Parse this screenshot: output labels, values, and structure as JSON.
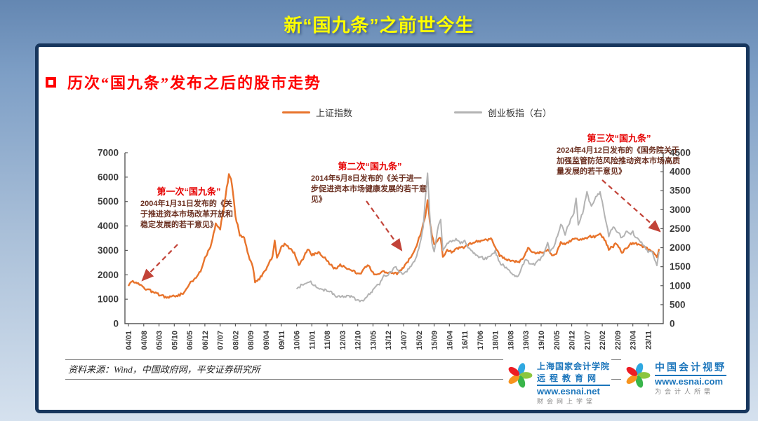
{
  "slide": {
    "title": "新“国九条”之前世今生"
  },
  "bullet": {
    "label": "历次“国九条”发布之后的股市走势"
  },
  "legend": [
    {
      "label": "上证指数",
      "color": "#E8742C"
    },
    {
      "label": "创业板指（右）",
      "color": "#B3B3B3"
    }
  ],
  "annotations": [
    {
      "title": "第一次“国九条”",
      "body": "2004年1月31日发布的《关于推进资本市场改革开放和稳定发展的若干意见》"
    },
    {
      "title": "第二次“国九条”",
      "body": "2014年5月8日发布的《关于进一步促进资本市场健康发展的若干意见》"
    },
    {
      "title": "第三次“国九条”",
      "body": "2024年4月12日发布的《国务院关于加强监管防范风险推动资本市场高质量发展的若干意见》"
    }
  ],
  "source": {
    "text": "资料来源：Wind，中国政府网，平安证券研究所"
  },
  "logos": [
    {
      "line1": "上海国家会计学院",
      "line2": "远程教育网",
      "url": "www.esnai.net",
      "tagline": "财会网上学堂"
    },
    {
      "line1": "中国会计视野",
      "line2": "",
      "url": "www.esnai.com",
      "tagline": "为会计人所需"
    }
  ],
  "chart_data": {
    "type": "line",
    "title": "历次“国九条”发布之后的股市走势",
    "legend_position": "top",
    "grid": false,
    "x_axis": {
      "unit": "yy/mm",
      "domain_months": [
        0,
        243
      ],
      "start_label": "04/01",
      "end_label": "24/04",
      "ticks": [
        "04/01",
        "04/08",
        "05/03",
        "05/10",
        "06/05",
        "06/12",
        "07/07",
        "08/02",
        "08/09",
        "09/04",
        "09/11",
        "10/06",
        "11/01",
        "11/08",
        "12/03",
        "12/10",
        "13/05",
        "13/12",
        "14/07",
        "15/02",
        "15/09",
        "16/04",
        "16/11",
        "17/06",
        "18/01",
        "18/08",
        "19/03",
        "19/10",
        "20/05",
        "20/12",
        "21/07",
        "22/02",
        "22/09",
        "23/04",
        "23/11"
      ]
    },
    "y_left": {
      "min": 0,
      "max": 7000,
      "step": 1000,
      "ticks": [
        0,
        1000,
        2000,
        3000,
        4000,
        5000,
        6000,
        7000
      ]
    },
    "y_right": {
      "min": 0,
      "max": 4500,
      "step": 500,
      "ticks": [
        0,
        500,
        1000,
        1500,
        2000,
        2500,
        3000,
        3500,
        4000,
        4500
      ]
    },
    "series": [
      {
        "name": "上证指数",
        "axis": "left",
        "color": "#E8742C",
        "width": 2.4,
        "noise": 55,
        "keypoints": [
          [
            0,
            1580
          ],
          [
            2,
            1750
          ],
          [
            4,
            1690
          ],
          [
            6,
            1520
          ],
          [
            8,
            1420
          ],
          [
            11,
            1310
          ],
          [
            14,
            1190
          ],
          [
            17,
            1080
          ],
          [
            20,
            1120
          ],
          [
            23,
            1160
          ],
          [
            26,
            1310
          ],
          [
            28,
            1650
          ],
          [
            31,
            1850
          ],
          [
            33,
            2150
          ],
          [
            35,
            2680
          ],
          [
            38,
            3250
          ],
          [
            40,
            4100
          ],
          [
            42,
            3900
          ],
          [
            44,
            4900
          ],
          [
            45,
            5550
          ],
          [
            46,
            6090
          ],
          [
            47,
            5900
          ],
          [
            48,
            5280
          ],
          [
            49,
            4400
          ],
          [
            51,
            3650
          ],
          [
            53,
            3480
          ],
          [
            55,
            2780
          ],
          [
            57,
            2300
          ],
          [
            58,
            1730
          ],
          [
            60,
            1830
          ],
          [
            62,
            2090
          ],
          [
            64,
            2400
          ],
          [
            66,
            2760
          ],
          [
            67,
            3410
          ],
          [
            68,
            2680
          ],
          [
            70,
            3150
          ],
          [
            72,
            3260
          ],
          [
            74,
            3060
          ],
          [
            76,
            2880
          ],
          [
            78,
            2420
          ],
          [
            80,
            2660
          ],
          [
            82,
            3050
          ],
          [
            84,
            2810
          ],
          [
            87,
            2930
          ],
          [
            89,
            2770
          ],
          [
            92,
            2480
          ],
          [
            95,
            2210
          ],
          [
            97,
            2410
          ],
          [
            99,
            2310
          ],
          [
            101,
            2260
          ],
          [
            104,
            2110
          ],
          [
            106,
            2010
          ],
          [
            108,
            2280
          ],
          [
            110,
            2370
          ],
          [
            113,
            1990
          ],
          [
            116,
            2110
          ],
          [
            119,
            2100
          ],
          [
            121,
            2040
          ],
          [
            123,
            2060
          ],
          [
            126,
            2310
          ],
          [
            129,
            2690
          ],
          [
            132,
            3210
          ],
          [
            134,
            3760
          ],
          [
            136,
            4450
          ],
          [
            137,
            5100
          ],
          [
            138,
            4200
          ],
          [
            139,
            3660
          ],
          [
            140,
            3220
          ],
          [
            142,
            3450
          ],
          [
            143,
            3540
          ],
          [
            144,
            2740
          ],
          [
            146,
            3000
          ],
          [
            148,
            2930
          ],
          [
            150,
            3060
          ],
          [
            153,
            3110
          ],
          [
            156,
            3260
          ],
          [
            159,
            3350
          ],
          [
            162,
            3390
          ],
          [
            166,
            3480
          ],
          [
            168,
            3170
          ],
          [
            170,
            2780
          ],
          [
            173,
            2610
          ],
          [
            175,
            2580
          ],
          [
            179,
            2500
          ],
          [
            181,
            2750
          ],
          [
            183,
            3090
          ],
          [
            185,
            2910
          ],
          [
            187,
            2890
          ],
          [
            190,
            2930
          ],
          [
            192,
            3040
          ],
          [
            194,
            2760
          ],
          [
            196,
            2860
          ],
          [
            198,
            3320
          ],
          [
            200,
            3230
          ],
          [
            202,
            3350
          ],
          [
            205,
            3510
          ],
          [
            206,
            3400
          ],
          [
            208,
            3460
          ],
          [
            210,
            3530
          ],
          [
            212,
            3570
          ],
          [
            214,
            3560
          ],
          [
            216,
            3640
          ],
          [
            218,
            3460
          ],
          [
            220,
            3060
          ],
          [
            222,
            3150
          ],
          [
            223,
            3280
          ],
          [
            225,
            3110
          ],
          [
            226,
            2890
          ],
          [
            228,
            3100
          ],
          [
            230,
            3260
          ],
          [
            232,
            3290
          ],
          [
            234,
            3220
          ],
          [
            236,
            3130
          ],
          [
            238,
            3040
          ],
          [
            240,
            2960
          ],
          [
            242,
            2700
          ],
          [
            243,
            3060
          ]
        ]
      },
      {
        "name": "创业板指（右）",
        "axis": "right",
        "color": "#B3B3B3",
        "width": 2.0,
        "noise": 40,
        "keypoints": [
          [
            77,
            900
          ],
          [
            79,
            1010
          ],
          [
            81,
            1090
          ],
          [
            83,
            1110
          ],
          [
            85,
            1030
          ],
          [
            87,
            950
          ],
          [
            90,
            880
          ],
          [
            93,
            830
          ],
          [
            95,
            720
          ],
          [
            98,
            705
          ],
          [
            100,
            735
          ],
          [
            102,
            700
          ],
          [
            105,
            625
          ],
          [
            107,
            590
          ],
          [
            109,
            705
          ],
          [
            111,
            805
          ],
          [
            113,
            955
          ],
          [
            115,
            1055
          ],
          [
            117,
            1255
          ],
          [
            119,
            1305
          ],
          [
            121,
            1385
          ],
          [
            122,
            1500
          ],
          [
            124,
            1355
          ],
          [
            126,
            1305
          ],
          [
            128,
            1405
          ],
          [
            130,
            1545
          ],
          [
            132,
            1800
          ],
          [
            134,
            2200
          ],
          [
            135,
            2550
          ],
          [
            136,
            3300
          ],
          [
            137,
            3980
          ],
          [
            138,
            2850
          ],
          [
            139,
            2100
          ],
          [
            140,
            1900
          ],
          [
            142,
            2620
          ],
          [
            143,
            2714
          ],
          [
            144,
            1900
          ],
          [
            146,
            2110
          ],
          [
            148,
            2160
          ],
          [
            150,
            2210
          ],
          [
            152,
            2110
          ],
          [
            154,
            2160
          ],
          [
            156,
            1970
          ],
          [
            158,
            1860
          ],
          [
            160,
            1780
          ],
          [
            163,
            1710
          ],
          [
            166,
            1760
          ],
          [
            168,
            1905
          ],
          [
            170,
            1610
          ],
          [
            172,
            1510
          ],
          [
            174,
            1410
          ],
          [
            176,
            1310
          ],
          [
            178,
            1210
          ],
          [
            180,
            1460
          ],
          [
            182,
            1705
          ],
          [
            184,
            1560
          ],
          [
            186,
            1555
          ],
          [
            188,
            1655
          ],
          [
            190,
            1805
          ],
          [
            192,
            2110
          ],
          [
            193,
            1905
          ],
          [
            195,
            2055
          ],
          [
            197,
            2410
          ],
          [
            198,
            2610
          ],
          [
            199,
            2510
          ],
          [
            200,
            2360
          ],
          [
            202,
            2660
          ],
          [
            204,
            2910
          ],
          [
            205,
            3300
          ],
          [
            206,
            2610
          ],
          [
            208,
            2910
          ],
          [
            210,
            3500
          ],
          [
            211,
            3210
          ],
          [
            212,
            3110
          ],
          [
            214,
            3310
          ],
          [
            216,
            3460
          ],
          [
            218,
            2910
          ],
          [
            220,
            2310
          ],
          [
            221,
            2460
          ],
          [
            222,
            2560
          ],
          [
            223,
            2510
          ],
          [
            224,
            2410
          ],
          [
            226,
            2260
          ],
          [
            228,
            2410
          ],
          [
            230,
            2360
          ],
          [
            231,
            2410
          ],
          [
            232,
            2260
          ],
          [
            234,
            2210
          ],
          [
            236,
            2060
          ],
          [
            238,
            1910
          ],
          [
            240,
            1860
          ],
          [
            242,
            1560
          ],
          [
            243,
            1860
          ]
        ]
      }
    ],
    "annotation_arrows_color": "#C24338"
  }
}
